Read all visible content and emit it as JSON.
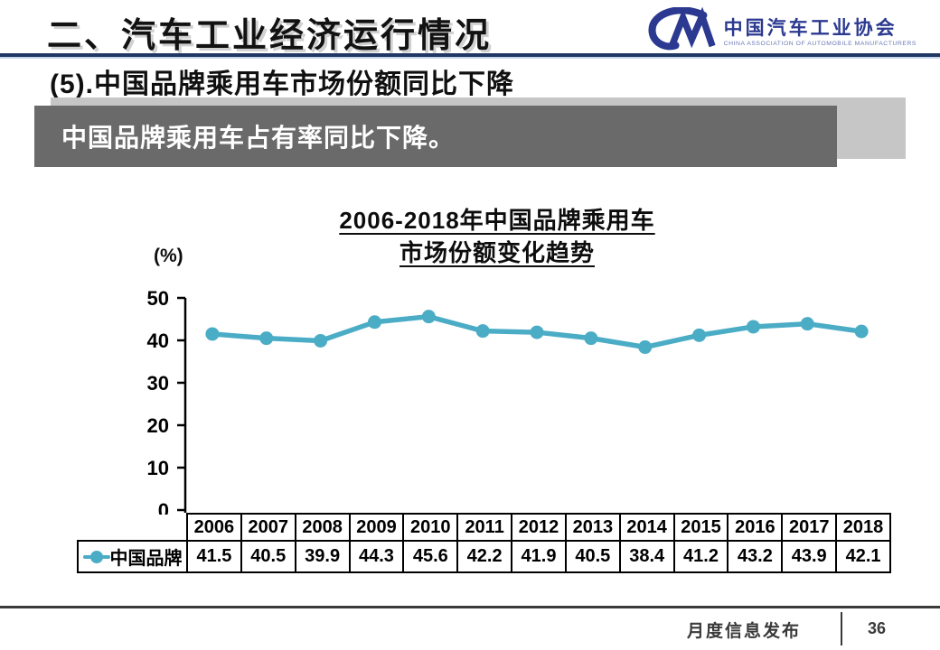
{
  "header": {
    "title": "二、汽车工业经济运行情况",
    "logo": {
      "mark": "CM-swoosh",
      "name_cn": "中国汽车工业协会",
      "name_en": "CHINA ASSOCIATION OF AUTOMOBILE MANUFACTURERS"
    }
  },
  "subtitle": "(5).中国品牌乘用车市场份额同比下降",
  "banner": {
    "text": "中国品牌乘用车占有率同比下降。"
  },
  "chart_data": {
    "type": "line",
    "title_line1": "2006-2018年中国品牌乘用车",
    "title_line2": "市场份额变化趋势",
    "unit_label": "(%)",
    "categories": [
      "2006",
      "2007",
      "2008",
      "2009",
      "2010",
      "2011",
      "2012",
      "2013",
      "2014",
      "2015",
      "2016",
      "2017",
      "2018"
    ],
    "series": [
      {
        "name": "中国品牌",
        "values": [
          41.5,
          40.5,
          39.9,
          44.3,
          45.6,
          42.2,
          41.9,
          40.5,
          38.4,
          41.2,
          43.2,
          43.9,
          42.1
        ],
        "color": "#4BACC6"
      }
    ],
    "ylim": [
      0,
      50
    ],
    "yticks": [
      0,
      10,
      20,
      30,
      40,
      50
    ],
    "grid": false,
    "legend_position": "table-left",
    "x_labels_as_table": true
  },
  "footer": {
    "label": "月度信息发布",
    "page": "36"
  },
  "colors": {
    "accent_teal": "#4BACC6",
    "rule_navy": "#1F3864",
    "banner_gray": "#6a6a6a",
    "banner_shadow_gray": "#c6c6c6",
    "logo_blue": "#2B3990",
    "axis_black": "#000000",
    "footer_gray": "#3a3a3a"
  }
}
